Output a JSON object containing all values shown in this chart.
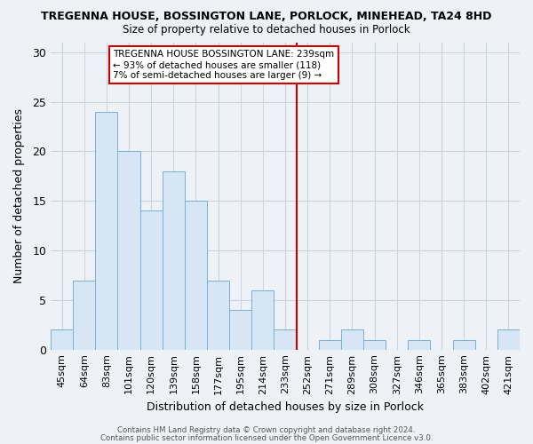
{
  "title": "TREGENNA HOUSE, BOSSINGTON LANE, PORLOCK, MINEHEAD, TA24 8HD",
  "subtitle": "Size of property relative to detached houses in Porlock",
  "xlabel": "Distribution of detached houses by size in Porlock",
  "ylabel": "Number of detached properties",
  "bar_color": "#d6e6f4",
  "bar_edge_color": "#7aafd4",
  "categories": [
    "45sqm",
    "64sqm",
    "83sqm",
    "101sqm",
    "120sqm",
    "139sqm",
    "158sqm",
    "177sqm",
    "195sqm",
    "214sqm",
    "233sqm",
    "252sqm",
    "271sqm",
    "289sqm",
    "308sqm",
    "327sqm",
    "346sqm",
    "365sqm",
    "383sqm",
    "402sqm",
    "421sqm"
  ],
  "values": [
    2,
    7,
    24,
    20,
    14,
    18,
    15,
    7,
    4,
    6,
    2,
    0,
    1,
    2,
    1,
    0,
    1,
    0,
    1,
    0,
    2
  ],
  "ylim": [
    0,
    31
  ],
  "yticks": [
    0,
    5,
    10,
    15,
    20,
    25,
    30
  ],
  "vline_x": 10.5,
  "vline_color": "#cc0000",
  "annotation_title": "TREGENNA HOUSE BOSSINGTON LANE: 239sqm",
  "annotation_line1": "← 93% of detached houses are smaller (118)",
  "annotation_line2": "7% of semi-detached houses are larger (9) →",
  "footer1": "Contains HM Land Registry data © Crown copyright and database right 2024.",
  "footer2": "Contains public sector information licensed under the Open Government Licence v3.0.",
  "background_color": "#eef2f7",
  "plot_bg_color": "#eef2f7",
  "grid_color": "#c8d4e0"
}
